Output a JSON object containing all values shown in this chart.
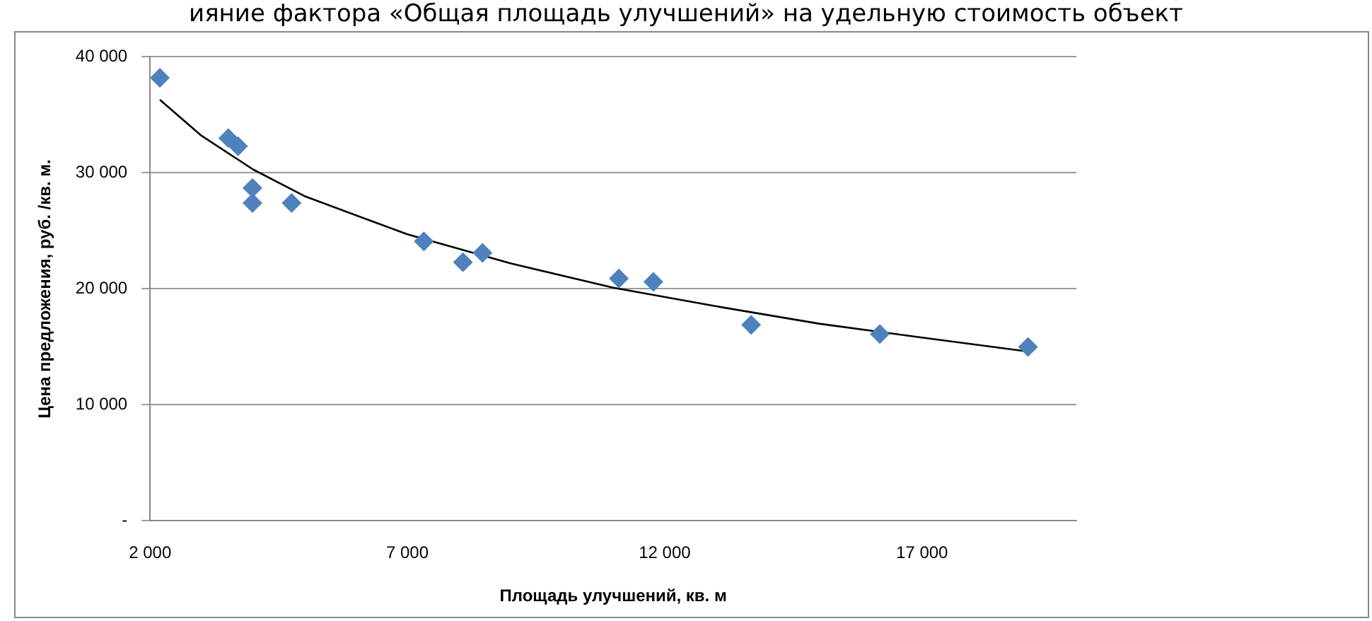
{
  "chart_data": {
    "type": "scatter",
    "title": "ияние фактора «Общая площадь улучшений» на удельную стоимость объект",
    "xlabel": "Площадь улучшений, кв. м",
    "ylabel": "Цена предложения, руб. /кв. м.",
    "xlim": [
      2000,
      20000
    ],
    "xticks": [
      {
        "value": 2000,
        "label": "2 000"
      },
      {
        "value": 7000,
        "label": "7 000"
      },
      {
        "value": 12000,
        "label": "12 000"
      },
      {
        "value": 17000,
        "label": "17 000"
      }
    ],
    "ylim": [
      0,
      40000
    ],
    "yticks": [
      {
        "value": 0,
        "label": "-"
      },
      {
        "value": 10000,
        "label": "10 000"
      },
      {
        "value": 20000,
        "label": "20 000"
      },
      {
        "value": 30000,
        "label": "30 000"
      },
      {
        "value": 40000,
        "label": "40 000"
      }
    ],
    "grid": "y",
    "legend": false,
    "marker": "diamond",
    "series": [
      {
        "type": "scatter",
        "color": "#4f81bd",
        "x": [
          2190,
          3520,
          3710,
          3990,
          3990,
          4750,
          7320,
          8080,
          8460,
          11110,
          11780,
          13680,
          16180,
          19060
        ],
        "values": [
          38200,
          33000,
          32300,
          28700,
          27400,
          27400,
          24100,
          22300,
          23100,
          20900,
          20600,
          16900,
          16100,
          15000
        ]
      },
      {
        "type": "line",
        "color": "#000000",
        "marker": "none",
        "x": [
          2190,
          3000,
          4000,
          5000,
          7000,
          9000,
          11000,
          13000,
          15000,
          17000,
          19060
        ],
        "values": [
          36300,
          33200,
          30300,
          28000,
          24700,
          22200,
          20100,
          18500,
          17000,
          15800,
          14600
        ]
      }
    ]
  }
}
